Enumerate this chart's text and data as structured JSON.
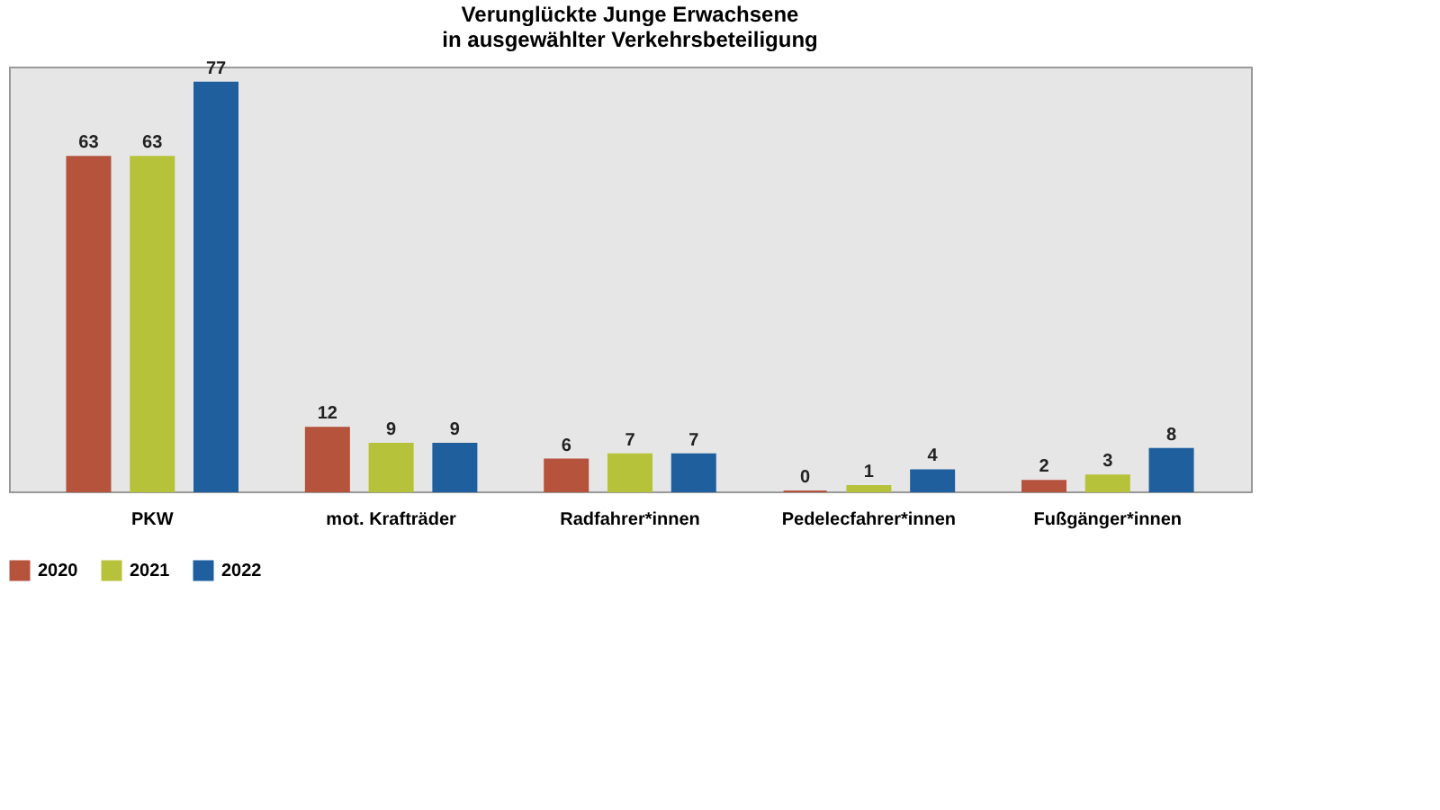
{
  "chart_data": {
    "type": "bar",
    "title": [
      "Verunglückte Junge Erwachsene",
      "in ausgewählter Verkehrsbeteiligung"
    ],
    "categories": [
      "PKW",
      "mot. Krafträder",
      "Radfahrer*innen",
      "Pedelecfahrer*innen",
      "Fußgänger*innen"
    ],
    "series": [
      {
        "name": "2020",
        "color": "#b5533c",
        "values": [
          63,
          12,
          6,
          0,
          2
        ]
      },
      {
        "name": "2021",
        "color": "#b5c23a",
        "values": [
          63,
          9,
          7,
          1,
          3
        ]
      },
      {
        "name": "2022",
        "color": "#1f5f9e",
        "values": [
          77,
          9,
          7,
          4,
          8
        ]
      }
    ],
    "data_labels": true,
    "legend": "bottom",
    "grid": false
  }
}
